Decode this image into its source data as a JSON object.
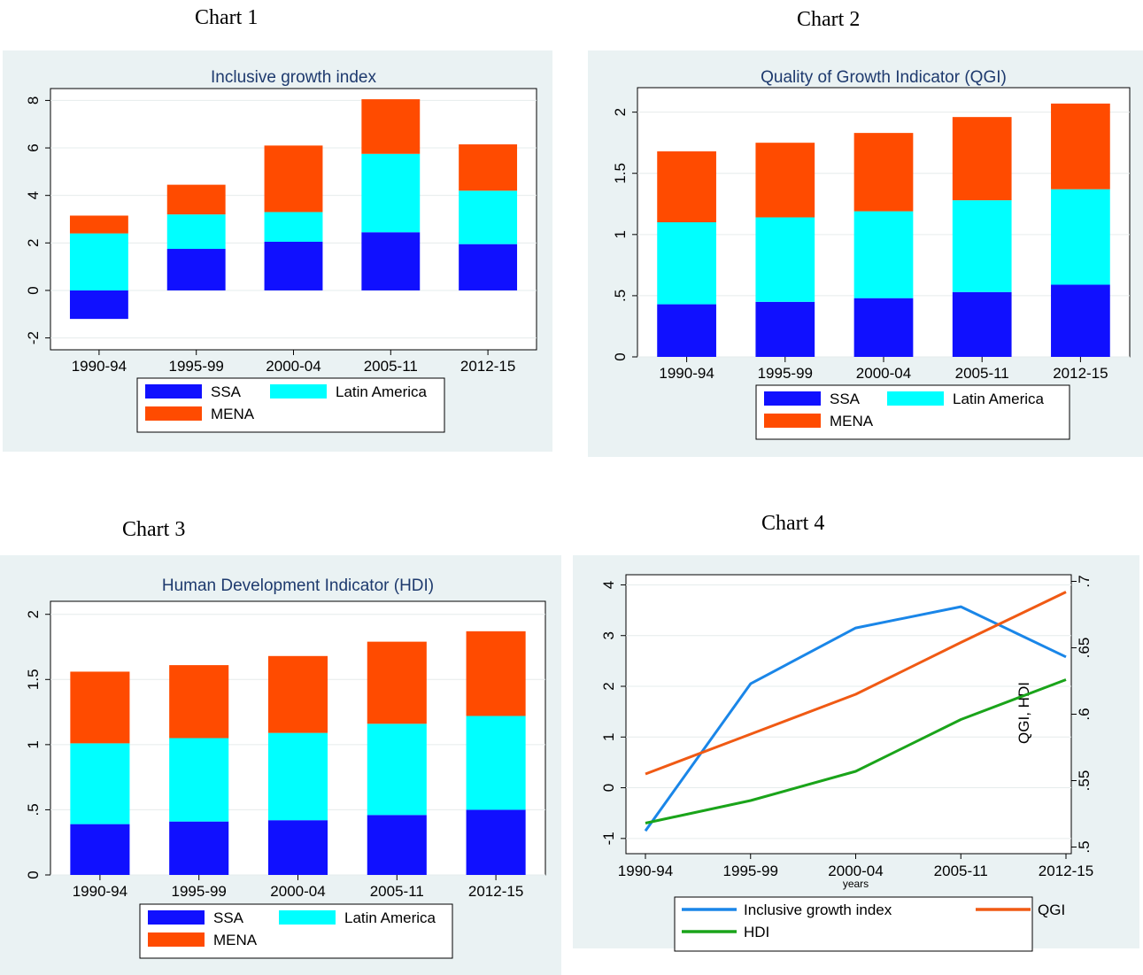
{
  "captions": [
    "Chart 1",
    "Chart 2",
    "Chart 3",
    "Chart 4"
  ],
  "colors": {
    "panel_bg": "#eaf2f3",
    "title": "#1e3a6e",
    "SSA": "#1010ff",
    "Latin America": "#00ffff",
    "MENA": "#ff4b00",
    "Inclusive growth index": "#1a86e8",
    "QGI": "#f05a14",
    "HDI": "#1aa41a"
  },
  "chart_data": [
    {
      "type": "bar",
      "stacked": true,
      "title": "Inclusive growth index",
      "categories": [
        "1990-94",
        "1995-99",
        "2000-04",
        "2005-11",
        "2012-15"
      ],
      "series": [
        {
          "name": "SSA",
          "values": [
            -1.2,
            1.75,
            2.05,
            2.45,
            1.95
          ]
        },
        {
          "name": "Latin America",
          "values": [
            2.4,
            1.45,
            1.25,
            3.3,
            2.25
          ]
        },
        {
          "name": "MENA",
          "values": [
            0.75,
            1.25,
            2.8,
            2.3,
            1.95
          ]
        }
      ],
      "ylim": [
        -2.5,
        8.5
      ],
      "yticks": [
        -2,
        0,
        2,
        4,
        6,
        8
      ],
      "ytick_labels": [
        "-2",
        "0",
        "2",
        "4",
        "6",
        "8"
      ],
      "grid": true,
      "legend": {
        "position": "bottom",
        "entries": [
          "SSA",
          "Latin America",
          "MENA"
        ]
      }
    },
    {
      "type": "bar",
      "stacked": true,
      "title": "Quality of Growth Indicator (QGI)",
      "categories": [
        "1990-94",
        "1995-99",
        "2000-04",
        "2005-11",
        "2012-15"
      ],
      "series": [
        {
          "name": "SSA",
          "values": [
            0.43,
            0.45,
            0.48,
            0.53,
            0.59
          ]
        },
        {
          "name": "Latin America",
          "values": [
            0.67,
            0.69,
            0.71,
            0.75,
            0.78
          ]
        },
        {
          "name": "MENA",
          "values": [
            0.58,
            0.61,
            0.64,
            0.68,
            0.7
          ]
        }
      ],
      "ylim": [
        0,
        2.2
      ],
      "yticks": [
        0,
        0.5,
        1,
        1.5,
        2
      ],
      "ytick_labels": [
        "0",
        ".5",
        "1",
        "1.5",
        "2"
      ],
      "grid": true,
      "legend": {
        "position": "bottom",
        "entries": [
          "SSA",
          "Latin America",
          "MENA"
        ]
      }
    },
    {
      "type": "bar",
      "stacked": true,
      "title": "Human Development Indicator (HDI)",
      "categories": [
        "1990-94",
        "1995-99",
        "2000-04",
        "2005-11",
        "2012-15"
      ],
      "series": [
        {
          "name": "SSA",
          "values": [
            0.39,
            0.41,
            0.42,
            0.46,
            0.5
          ]
        },
        {
          "name": "Latin America",
          "values": [
            0.62,
            0.64,
            0.67,
            0.7,
            0.72
          ]
        },
        {
          "name": "MENA",
          "values": [
            0.55,
            0.56,
            0.59,
            0.63,
            0.65
          ]
        }
      ],
      "ylim": [
        0,
        2.1
      ],
      "yticks": [
        0,
        0.5,
        1,
        1.5,
        2
      ],
      "ytick_labels": [
        "0",
        ".5",
        "1",
        "1.5",
        "2"
      ],
      "grid": true,
      "legend": {
        "position": "bottom",
        "entries": [
          "SSA",
          "Latin America",
          "MENA"
        ]
      }
    },
    {
      "type": "line",
      "categories": [
        "1990-94",
        "1995-99",
        "2000-04",
        "2005-11",
        "2012-15"
      ],
      "xlabel": "years",
      "y2label": "QGI, HDI",
      "series": [
        {
          "name": "Inclusive growth index",
          "axis": "left",
          "values": [
            -0.85,
            2.05,
            3.15,
            3.57,
            2.58
          ]
        },
        {
          "name": "QGI",
          "axis": "right",
          "values": [
            0.555,
            0.585,
            0.615,
            0.654,
            0.692
          ]
        },
        {
          "name": "HDI",
          "axis": "right",
          "values": [
            0.518,
            0.535,
            0.557,
            0.596,
            0.626
          ]
        }
      ],
      "ylim": [
        -1.3,
        4.2
      ],
      "yticks": [
        -1,
        0,
        1,
        2,
        3,
        4
      ],
      "ytick_labels": [
        "-1",
        "0",
        "1",
        "2",
        "3",
        "4"
      ],
      "y2lim": [
        0.495,
        0.705
      ],
      "y2ticks": [
        0.5,
        0.55,
        0.6,
        0.65,
        0.7
      ],
      "y2tick_labels": [
        ".5",
        ".55",
        ".6",
        ".65",
        ".7"
      ],
      "grid": true,
      "legend": {
        "position": "bottom",
        "entries": [
          "Inclusive growth index",
          "QGI",
          "HDI"
        ]
      }
    }
  ]
}
